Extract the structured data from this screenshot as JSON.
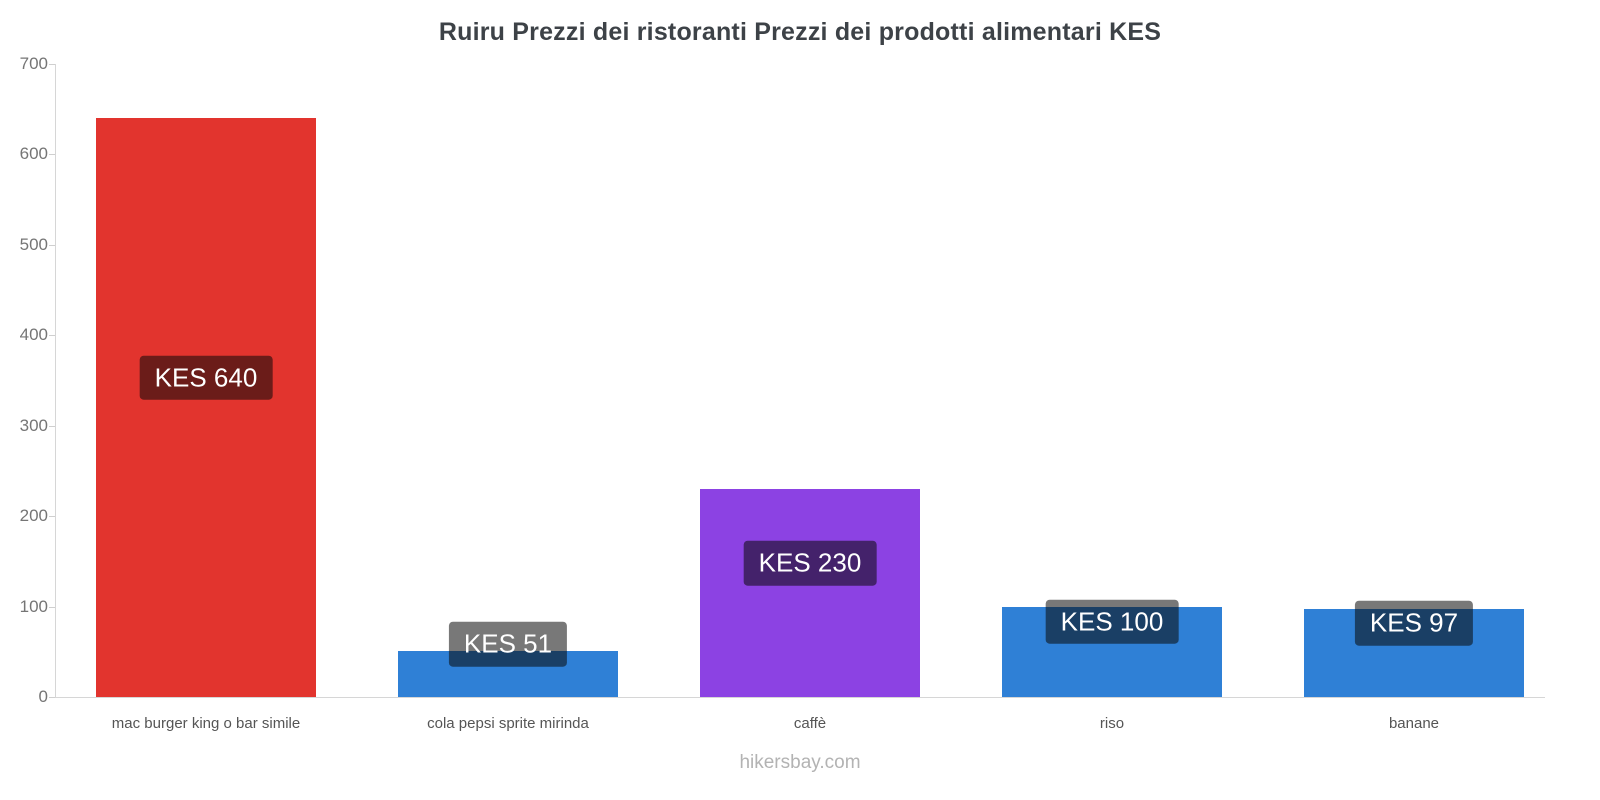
{
  "chart_data": {
    "type": "bar",
    "title": "Ruiru Prezzi dei ristoranti Prezzi dei prodotti alimentari KES",
    "categories": [
      "mac burger king o bar simile",
      "cola pepsi sprite mirinda",
      "caffè",
      "riso",
      "banane"
    ],
    "values": [
      640,
      51,
      230,
      100,
      97
    ],
    "value_labels": [
      "KES 640",
      "KES 51",
      "KES 230",
      "KES 100",
      "KES 97"
    ],
    "bar_colors": [
      "#e2342e",
      "#2f80d6",
      "#8c42e3",
      "#2f80d6",
      "#2f80d6"
    ],
    "label_overlay_color": "rgba(10,10,10,0.55)",
    "xlabel": "",
    "ylabel": "",
    "ylim": [
      0,
      700
    ],
    "yticks": [
      0,
      100,
      200,
      300,
      400,
      500,
      600,
      700
    ],
    "grid": false,
    "legend": "none",
    "currency": "KES"
  },
  "footer": {
    "text": "hikersbay.com"
  }
}
